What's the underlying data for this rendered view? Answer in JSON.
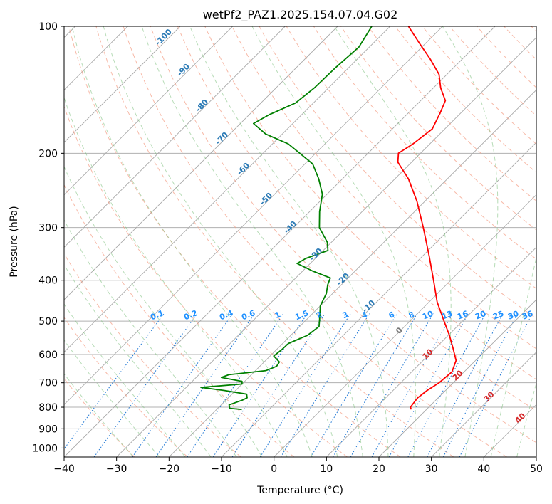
{
  "chart_data": {
    "type": "skew-t",
    "title": "wetPf2_PAZ1.2025.154.07.04.G02",
    "xlabel": "Temperature (°C)",
    "ylabel": "Pressure (hPa)",
    "xlim": [
      -40,
      50
    ],
    "ylim": [
      1050,
      100
    ],
    "y_scale": "log",
    "grid": true,
    "x_ticks": [
      "−40",
      "−30",
      "−20",
      "−10",
      "0",
      "10",
      "20",
      "30",
      "40",
      "50"
    ],
    "y_ticks": [
      100,
      200,
      300,
      400,
      500,
      600,
      700,
      800,
      900,
      1000
    ],
    "dry_adiabat_labels": [
      "-100",
      "-90",
      "-80",
      "-70",
      "-60",
      "-50",
      "-40",
      "-30",
      "-20",
      "-10"
    ],
    "moist_adiabat_labels": [
      "0",
      "10",
      "20",
      "30",
      "40"
    ],
    "mixing_ratio_labels": [
      "0.1",
      "0.2",
      "0.4",
      "0.6",
      "1",
      "1.5",
      "2",
      "3",
      "4",
      "6",
      "8",
      "10",
      "13",
      "16",
      "20",
      "25",
      "30",
      "36"
    ],
    "series": [
      {
        "color": "#ff0000",
        "points": [
          {
            "p": 810,
            "t": 17.1
          },
          {
            "p": 800,
            "t": 16.5
          },
          {
            "p": 760,
            "t": 16.1
          },
          {
            "p": 730,
            "t": 16.5
          },
          {
            "p": 700,
            "t": 17.3
          },
          {
            "p": 660,
            "t": 17.7
          },
          {
            "p": 620,
            "t": 16.3
          },
          {
            "p": 580,
            "t": 13.4
          },
          {
            "p": 540,
            "t": 10.2
          },
          {
            "p": 500,
            "t": 6.5
          },
          {
            "p": 450,
            "t": 1.5
          },
          {
            "p": 400,
            "t": -3.3
          },
          {
            "p": 350,
            "t": -8.8
          },
          {
            "p": 300,
            "t": -15.3
          },
          {
            "p": 260,
            "t": -21.5
          },
          {
            "p": 230,
            "t": -27.4
          },
          {
            "p": 210,
            "t": -32.6
          },
          {
            "p": 200,
            "t": -34.2
          },
          {
            "p": 190,
            "t": -33.2
          },
          {
            "p": 175,
            "t": -32.4
          },
          {
            "p": 160,
            "t": -34.0
          },
          {
            "p": 150,
            "t": -35.3
          },
          {
            "p": 140,
            "t": -38.6
          },
          {
            "p": 130,
            "t": -41.5
          },
          {
            "p": 120,
            "t": -45.9
          },
          {
            "p": 110,
            "t": -51.0
          },
          {
            "p": 100,
            "t": -56.5
          }
        ]
      },
      {
        "color": "#008000",
        "points": [
          {
            "p": 810,
            "t": -15.2
          },
          {
            "p": 805,
            "t": -17.7
          },
          {
            "p": 790,
            "t": -18.5
          },
          {
            "p": 770,
            "t": -16.9
          },
          {
            "p": 760,
            "t": -16.4
          },
          {
            "p": 745,
            "t": -17.2
          },
          {
            "p": 730,
            "t": -22.2
          },
          {
            "p": 718,
            "t": -27.2
          },
          {
            "p": 705,
            "t": -20.0
          },
          {
            "p": 695,
            "t": -20.5
          },
          {
            "p": 680,
            "t": -25.2
          },
          {
            "p": 670,
            "t": -24.3
          },
          {
            "p": 655,
            "t": -18.0
          },
          {
            "p": 640,
            "t": -16.8
          },
          {
            "p": 625,
            "t": -17.1
          },
          {
            "p": 605,
            "t": -19.3
          },
          {
            "p": 585,
            "t": -19.0
          },
          {
            "p": 565,
            "t": -18.9
          },
          {
            "p": 540,
            "t": -16.8
          },
          {
            "p": 515,
            "t": -16.3
          },
          {
            "p": 490,
            "t": -17.9
          },
          {
            "p": 460,
            "t": -20.0
          },
          {
            "p": 430,
            "t": -21.2
          },
          {
            "p": 410,
            "t": -22.6
          },
          {
            "p": 395,
            "t": -23.4
          },
          {
            "p": 380,
            "t": -28.2
          },
          {
            "p": 365,
            "t": -32.5
          },
          {
            "p": 355,
            "t": -31.8
          },
          {
            "p": 340,
            "t": -29.1
          },
          {
            "p": 325,
            "t": -30.8
          },
          {
            "p": 300,
            "t": -35.1
          },
          {
            "p": 275,
            "t": -38.1
          },
          {
            "p": 250,
            "t": -40.9
          },
          {
            "p": 230,
            "t": -44.5
          },
          {
            "p": 212,
            "t": -48.5
          },
          {
            "p": 200,
            "t": -53.0
          },
          {
            "p": 190,
            "t": -57.0
          },
          {
            "p": 180,
            "t": -63.2
          },
          {
            "p": 170,
            "t": -67.5
          },
          {
            "p": 162,
            "t": -66.2
          },
          {
            "p": 152,
            "t": -63.4
          },
          {
            "p": 140,
            "t": -62.7
          },
          {
            "p": 125,
            "t": -62.5
          },
          {
            "p": 112,
            "t": -62.0
          },
          {
            "p": 100,
            "t": -63.5
          }
        ]
      }
    ]
  }
}
